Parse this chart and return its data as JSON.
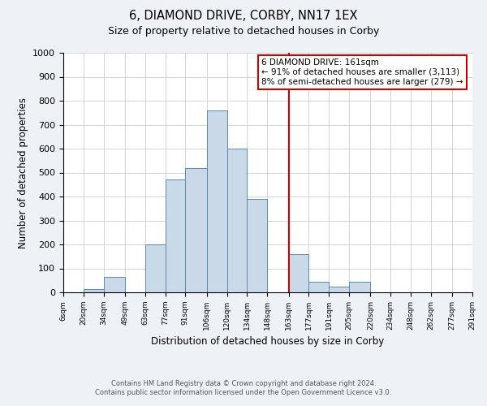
{
  "title": "6, DIAMOND DRIVE, CORBY, NN17 1EX",
  "subtitle": "Size of property relative to detached houses in Corby",
  "xlabel": "Distribution of detached houses by size in Corby",
  "ylabel": "Number of detached properties",
  "bar_edges": [
    6,
    20,
    34,
    49,
    63,
    77,
    91,
    106,
    120,
    134,
    148,
    163,
    177,
    191,
    205,
    220,
    234,
    248,
    262,
    277,
    291
  ],
  "bar_heights": [
    0,
    15,
    65,
    0,
    200,
    470,
    520,
    760,
    600,
    390,
    0,
    160,
    45,
    25,
    45,
    0,
    0,
    0,
    0,
    0
  ],
  "bar_color": "#c9d9e8",
  "bar_edgecolor": "#5a8ab0",
  "vline_x": 163,
  "vline_color": "#cc0000",
  "annotation_title": "6 DIAMOND DRIVE: 161sqm",
  "annotation_line1": "← 91% of detached houses are smaller (3,113)",
  "annotation_line2": "8% of semi-detached houses are larger (279) →",
  "annotation_box_edgecolor": "#cc0000",
  "annotation_box_facecolor": "#ffffff",
  "ylim": [
    0,
    1000
  ],
  "yticks": [
    0,
    100,
    200,
    300,
    400,
    500,
    600,
    700,
    800,
    900,
    1000
  ],
  "xtick_labels": [
    "6sqm",
    "20sqm",
    "34sqm",
    "49sqm",
    "63sqm",
    "77sqm",
    "91sqm",
    "106sqm",
    "120sqm",
    "134sqm",
    "148sqm",
    "163sqm",
    "177sqm",
    "191sqm",
    "205sqm",
    "220sqm",
    "234sqm",
    "248sqm",
    "262sqm",
    "277sqm",
    "291sqm"
  ],
  "footer_line1": "Contains HM Land Registry data © Crown copyright and database right 2024.",
  "footer_line2": "Contains public sector information licensed under the Open Government Licence v3.0.",
  "background_color": "#eef2f7",
  "plot_background_color": "#ffffff",
  "grid_color": "#cccccc",
  "title_fontsize": 10.5,
  "subtitle_fontsize": 9
}
